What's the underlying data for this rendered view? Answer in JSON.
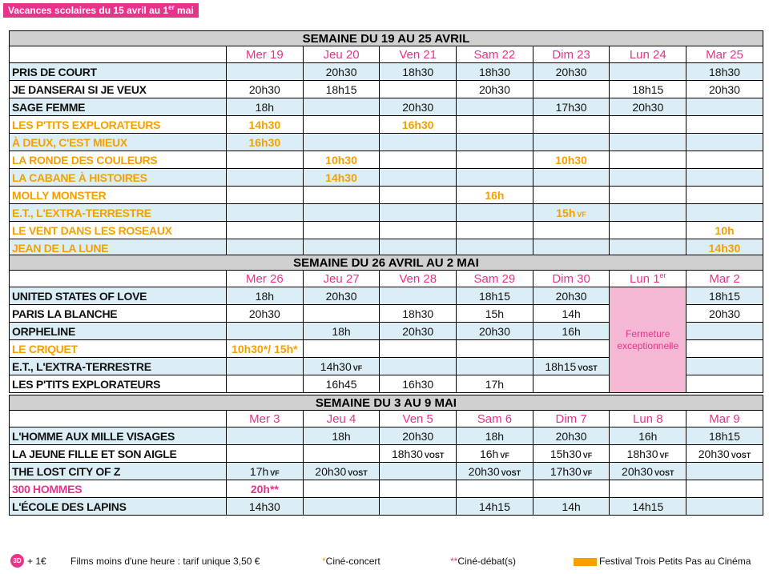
{
  "banner": {
    "text": "Vacances scolaires du 15 avril au 1",
    "sup": "er",
    "suffix": " mai"
  },
  "weeks": [
    {
      "title": "SEMAINE DU 19 AU 25 AVRIL",
      "days": [
        "Mer 19",
        "Jeu 20",
        "Ven 21",
        "Sam 22",
        "Dim 23",
        "Lun 24",
        "Mar 25"
      ],
      "films": [
        {
          "name": "PRIS DE COURT",
          "times": [
            "",
            "20h30",
            "18h30",
            "18h30",
            "20h30",
            "",
            "18h30"
          ]
        },
        {
          "name": "JE DANSERAI SI JE VEUX",
          "times": [
            "20h30",
            "18h15",
            "",
            "20h30",
            "",
            "18h15",
            "20h30"
          ]
        },
        {
          "name": "SAGE FEMME",
          "times": [
            "18h",
            "",
            "20h30",
            "",
            "17h30",
            "20h30",
            ""
          ]
        },
        {
          "name": "LES P'TITS EXPLORATEURS",
          "times": [
            "14h30",
            "",
            "16h30",
            "",
            "",
            "",
            ""
          ]
        },
        {
          "name": "À DEUX, C'EST MIEUX",
          "times": [
            "16h30",
            "",
            "",
            "",
            "",
            "",
            ""
          ]
        },
        {
          "name": "LA RONDE DES COULEURS",
          "times": [
            "",
            "10h30",
            "",
            "",
            "10h30",
            "",
            ""
          ]
        },
        {
          "name": "LA CABANE À HISTOIRES",
          "times": [
            "",
            "14h30",
            "",
            "",
            "",
            "",
            ""
          ]
        },
        {
          "name": "MOLLY MONSTER",
          "times": [
            "",
            "",
            "",
            "16h",
            "",
            "",
            ""
          ]
        },
        {
          "name": "E.T., L'EXTRA-TERRESTRE",
          "times": [
            "",
            "",
            "",
            "",
            "15h",
            "",
            ""
          ]
        },
        {
          "name": "LE VENT DANS LES ROSEAUX",
          "times": [
            "",
            "",
            "",
            "",
            "",
            "",
            "10h"
          ]
        },
        {
          "name": "JEAN DE LA LUNE",
          "times": [
            "",
            "",
            "",
            "",
            "",
            "",
            "14h30"
          ]
        }
      ]
    },
    {
      "title": "SEMAINE DU 26 AVRIL AU 2 MAI",
      "days": [
        "Mer 26",
        "Jeu 27",
        "Ven 28",
        "Sam 29",
        "Dim 30",
        "Lun 1",
        "Mar 2"
      ],
      "films": [
        {
          "name": "UNITED STATES OF LOVE",
          "times": [
            "18h",
            "20h30",
            "",
            "18h15",
            "20h30",
            "",
            "18h15"
          ]
        },
        {
          "name": "PARIS LA BLANCHE",
          "times": [
            "20h30",
            "",
            "18h30",
            "15h",
            "14h",
            "",
            "20h30"
          ]
        },
        {
          "name": "ORPHELINE",
          "times": [
            "",
            "18h",
            "20h30",
            "20h30",
            "16h",
            "",
            ""
          ]
        },
        {
          "name": "LE CRIQUET",
          "times": [
            "10h30*/ 15h*",
            "",
            "",
            "",
            "",
            "",
            ""
          ]
        },
        {
          "name": "E.T., L'EXTRA-TERRESTRE",
          "times": [
            "",
            "14h30",
            "",
            "",
            "18h15",
            "",
            ""
          ]
        },
        {
          "name": "LES P'TITS EXPLORATEURS",
          "times": [
            "",
            "16h45",
            "16h30",
            "17h",
            "",
            "",
            ""
          ]
        }
      ]
    },
    {
      "title": "SEMAINE DU 3 AU 9 MAI",
      "days": [
        "Mer 3",
        "Jeu 4",
        "Ven 5",
        "Sam 6",
        "Dim 7",
        "Lun 8",
        "Mar 9"
      ],
      "films": [
        {
          "name": "L'HOMME AUX MILLE VISAGES",
          "times": [
            "",
            "18h",
            "20h30",
            "18h",
            "20h30",
            "16h",
            "18h15"
          ]
        },
        {
          "name": "LA JEUNE FILLE ET SON AIGLE",
          "times": [
            "",
            "",
            "18h30",
            "16h",
            "15h30",
            "18h30",
            "20h30"
          ]
        },
        {
          "name": "THE LOST CITY OF Z",
          "times": [
            "17h",
            "20h30",
            "",
            "20h30",
            "17h30",
            "20h30",
            ""
          ]
        },
        {
          "name": "300 HOMMES",
          "times": [
            "20h**",
            "",
            "",
            "",
            "",
            "",
            ""
          ]
        },
        {
          "name": "L'ÉCOLE DES LAPINS",
          "times": [
            "14h30",
            "",
            "",
            "14h15",
            "14h",
            "14h15",
            ""
          ]
        }
      ]
    }
  ],
  "versions": {
    "vf": "VF",
    "vost": "VOST"
  },
  "closure": {
    "sup": "er",
    "text": "Fermeture exceptionnelle"
  },
  "legend": {
    "badge": "3D",
    "plus": "+ 1€",
    "short_films": "Films moins d'une heure : tarif unique 3,50 €",
    "concert_star": "*",
    "concert": "Ciné-concert",
    "debat_star": "**",
    "debat": "Ciné-débat(s)",
    "festival": "Festival Trois Petits Pas au Cinéma"
  },
  "colors": {
    "pink": "#e8338a",
    "orange": "#f5a000",
    "blue_row": "#dbeef5",
    "header_gray": "#d0d0d0",
    "closed_pink": "#f4b8d5"
  }
}
